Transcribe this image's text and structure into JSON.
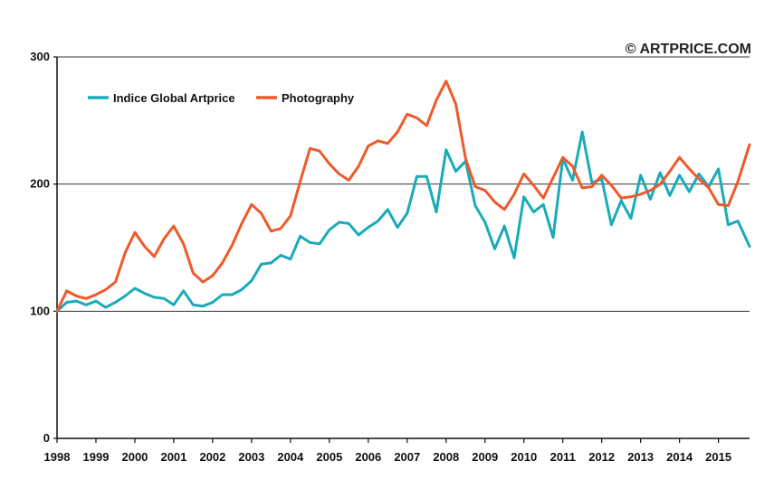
{
  "copyright": "© ARTPRICE.COM",
  "colors": {
    "global": "#1aabb8",
    "photography": "#ee5a2c",
    "axis": "#111111"
  },
  "chart_data": {
    "type": "line",
    "title": "",
    "xlabel": "",
    "ylabel": "",
    "xlim": [
      1998.0,
      2015.8
    ],
    "ylim": [
      0,
      300
    ],
    "y_ticks": [
      0,
      100,
      200,
      300
    ],
    "x_ticks": [
      "1998",
      "1999",
      "2000",
      "2001",
      "2002",
      "2003",
      "2004",
      "2005",
      "2006",
      "2007",
      "2008",
      "2009",
      "2010",
      "2011",
      "2012",
      "2013",
      "2014",
      "2015"
    ],
    "grid": "horizontal at 100, 200, 300",
    "legend_position": "top-left",
    "series": [
      {
        "name": "Indice Global Artprice",
        "color_key": "global",
        "points": [
          [
            1998.0,
            100
          ],
          [
            1998.25,
            107
          ],
          [
            1998.5,
            108
          ],
          [
            1998.75,
            105
          ],
          [
            1999.0,
            108
          ],
          [
            1999.25,
            103
          ],
          [
            1999.5,
            107
          ],
          [
            1999.75,
            112
          ],
          [
            2000.0,
            118
          ],
          [
            2000.25,
            114
          ],
          [
            2000.5,
            111
          ],
          [
            2000.75,
            110
          ],
          [
            2001.0,
            105
          ],
          [
            2001.25,
            116
          ],
          [
            2001.5,
            105
          ],
          [
            2001.75,
            104
          ],
          [
            2002.0,
            107
          ],
          [
            2002.25,
            113
          ],
          [
            2002.5,
            113
          ],
          [
            2002.75,
            117
          ],
          [
            2003.0,
            124
          ],
          [
            2003.25,
            137
          ],
          [
            2003.5,
            138
          ],
          [
            2003.75,
            144
          ],
          [
            2004.0,
            141
          ],
          [
            2004.25,
            159
          ],
          [
            2004.5,
            154
          ],
          [
            2004.75,
            153
          ],
          [
            2005.0,
            164
          ],
          [
            2005.25,
            170
          ],
          [
            2005.5,
            169
          ],
          [
            2005.75,
            160
          ],
          [
            2006.0,
            166
          ],
          [
            2006.25,
            171
          ],
          [
            2006.5,
            180
          ],
          [
            2006.75,
            166
          ],
          [
            2007.0,
            177
          ],
          [
            2007.25,
            206
          ],
          [
            2007.5,
            206
          ],
          [
            2007.75,
            178
          ],
          [
            2008.0,
            227
          ],
          [
            2008.25,
            210
          ],
          [
            2008.5,
            218
          ],
          [
            2008.75,
            183
          ],
          [
            2009.0,
            170
          ],
          [
            2009.25,
            149
          ],
          [
            2009.5,
            167
          ],
          [
            2009.75,
            142
          ],
          [
            2010.0,
            190
          ],
          [
            2010.25,
            178
          ],
          [
            2010.5,
            184
          ],
          [
            2010.75,
            158
          ],
          [
            2011.0,
            220
          ],
          [
            2011.25,
            203
          ],
          [
            2011.5,
            241
          ],
          [
            2011.75,
            201
          ],
          [
            2012.0,
            204
          ],
          [
            2012.25,
            168
          ],
          [
            2012.5,
            187
          ],
          [
            2012.75,
            173
          ],
          [
            2013.0,
            207
          ],
          [
            2013.25,
            188
          ],
          [
            2013.5,
            209
          ],
          [
            2013.75,
            191
          ],
          [
            2014.0,
            207
          ],
          [
            2014.25,
            194
          ],
          [
            2014.5,
            208
          ],
          [
            2014.75,
            198
          ],
          [
            2015.0,
            212
          ],
          [
            2015.25,
            168
          ],
          [
            2015.5,
            171
          ],
          [
            2015.8,
            151
          ]
        ]
      },
      {
        "name": "Photography",
        "color_key": "photography",
        "points": [
          [
            1998.0,
            100
          ],
          [
            1998.25,
            116
          ],
          [
            1998.5,
            112
          ],
          [
            1998.75,
            110
          ],
          [
            1999.0,
            113
          ],
          [
            1999.25,
            117
          ],
          [
            1999.5,
            123
          ],
          [
            1999.75,
            146
          ],
          [
            2000.0,
            162
          ],
          [
            2000.25,
            151
          ],
          [
            2000.5,
            143
          ],
          [
            2000.75,
            157
          ],
          [
            2001.0,
            167
          ],
          [
            2001.25,
            153
          ],
          [
            2001.5,
            130
          ],
          [
            2001.75,
            123
          ],
          [
            2002.0,
            128
          ],
          [
            2002.25,
            138
          ],
          [
            2002.5,
            152
          ],
          [
            2002.75,
            169
          ],
          [
            2003.0,
            184
          ],
          [
            2003.25,
            177
          ],
          [
            2003.5,
            163
          ],
          [
            2003.75,
            165
          ],
          [
            2004.0,
            175
          ],
          [
            2004.25,
            202
          ],
          [
            2004.5,
            228
          ],
          [
            2004.75,
            226
          ],
          [
            2005.0,
            216
          ],
          [
            2005.25,
            208
          ],
          [
            2005.5,
            203
          ],
          [
            2005.75,
            214
          ],
          [
            2006.0,
            230
          ],
          [
            2006.25,
            234
          ],
          [
            2006.5,
            232
          ],
          [
            2006.75,
            241
          ],
          [
            2007.0,
            255
          ],
          [
            2007.25,
            252
          ],
          [
            2007.5,
            246
          ],
          [
            2007.75,
            266
          ],
          [
            2008.0,
            281
          ],
          [
            2008.25,
            263
          ],
          [
            2008.5,
            220
          ],
          [
            2008.75,
            198
          ],
          [
            2009.0,
            195
          ],
          [
            2009.25,
            186
          ],
          [
            2009.5,
            180
          ],
          [
            2009.75,
            192
          ],
          [
            2010.0,
            208
          ],
          [
            2010.25,
            199
          ],
          [
            2010.5,
            189
          ],
          [
            2010.75,
            205
          ],
          [
            2011.0,
            221
          ],
          [
            2011.25,
            214
          ],
          [
            2011.5,
            197
          ],
          [
            2011.75,
            198
          ],
          [
            2012.0,
            207
          ],
          [
            2012.25,
            199
          ],
          [
            2012.5,
            189
          ],
          [
            2012.75,
            190
          ],
          [
            2013.0,
            192
          ],
          [
            2013.25,
            195
          ],
          [
            2013.5,
            200
          ],
          [
            2013.75,
            210
          ],
          [
            2014.0,
            221
          ],
          [
            2014.25,
            212
          ],
          [
            2014.5,
            204
          ],
          [
            2014.75,
            197
          ],
          [
            2015.0,
            184
          ],
          [
            2015.25,
            183
          ],
          [
            2015.5,
            202
          ],
          [
            2015.8,
            231
          ]
        ]
      }
    ]
  }
}
